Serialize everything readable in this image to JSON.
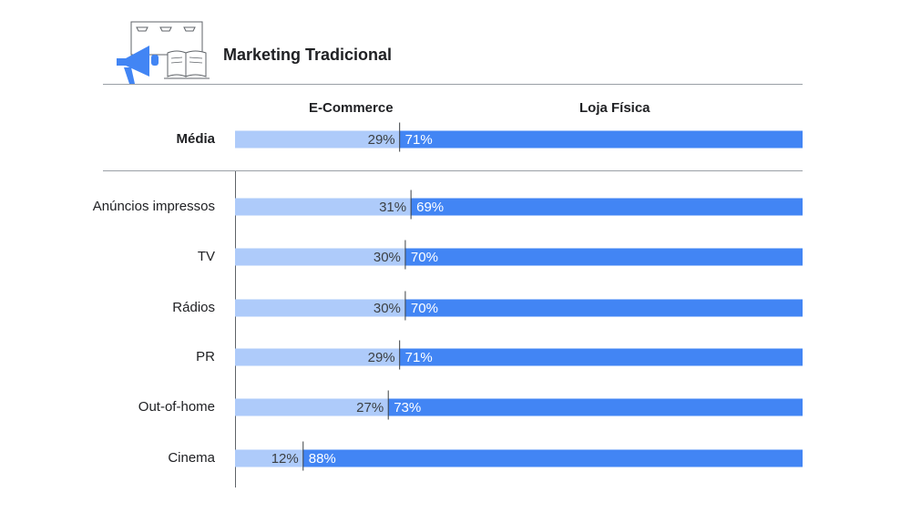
{
  "header": {
    "title": "Marketing Tradicional",
    "icon": "megaphone-and-book-icon",
    "icon_color": "#4285f4"
  },
  "chart_data": {
    "type": "bar",
    "stacked": true,
    "orientation": "horizontal",
    "title": "Marketing Tradicional",
    "unit": "%",
    "xlim": [
      0,
      100
    ],
    "legend": "top",
    "series": [
      {
        "name": "E-Commerce",
        "color": "#aecbfa",
        "label_color": "#3c4043",
        "values": [
          29,
          31,
          30,
          30,
          29,
          27,
          12
        ]
      },
      {
        "name": "Loja Física",
        "color": "#4285f4",
        "label_color": "#ffffff",
        "values": [
          71,
          69,
          70,
          70,
          71,
          73,
          88
        ]
      }
    ],
    "categories": [
      "Média",
      "Anúncios impressos",
      "TV",
      "Rádios",
      "PR",
      "Out-of-home",
      "Cinema"
    ],
    "highlight_category": "Média"
  }
}
